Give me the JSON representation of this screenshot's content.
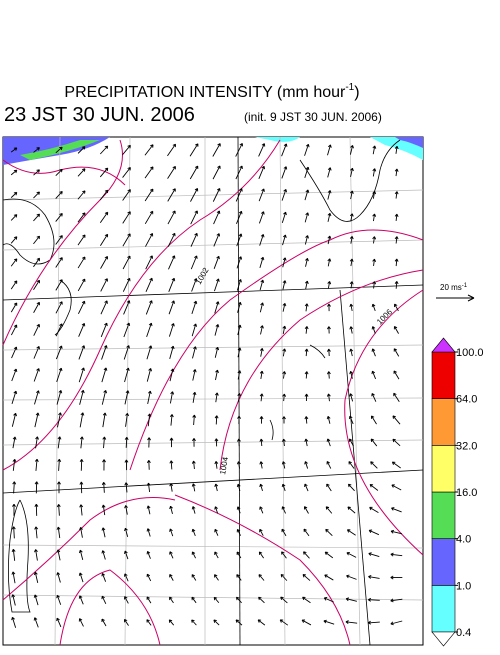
{
  "header": {
    "title_main": "PRECIPITATION INTENSITY (mm hour",
    "title_sup": "-1",
    "title_end": ")",
    "valid_time": "23 JST 30 JUN. 2006",
    "init_time": "(init. 9 JST 30 JUN. 2006)"
  },
  "scale_arrow": {
    "label_main": "20 ms",
    "label_sup": "-1"
  },
  "contour_labels": [
    "1002",
    "1004",
    "1006"
  ],
  "colorbar": {
    "ticks": [
      {
        "value": 0.4,
        "label": "0.4"
      },
      {
        "value": 1,
        "label": "1.0"
      },
      {
        "value": 4,
        "label": "4.0"
      },
      {
        "value": 16,
        "label": "16.0"
      },
      {
        "value": 32,
        "label": "32.0"
      },
      {
        "value": 64,
        "label": "64.0"
      },
      {
        "value": 100,
        "label": "100.0"
      }
    ],
    "colors": [
      "#66ffff",
      "#6666ff",
      "#55dd55",
      "#ffff66",
      "#ff9933",
      "#ee0000"
    ],
    "over_color": "#cc33ff",
    "under_color": "#ffffff"
  }
}
